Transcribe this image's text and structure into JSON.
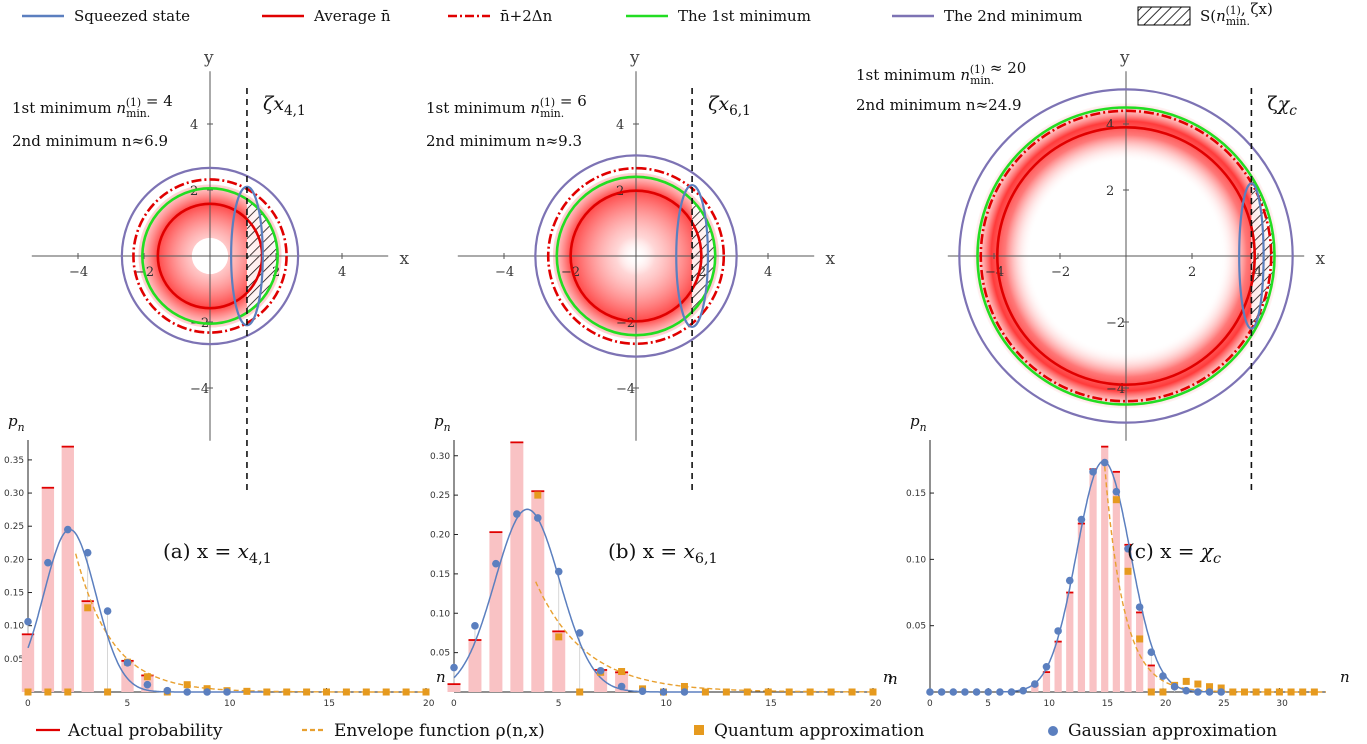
{
  "legend_top": [
    {
      "label": "Squeezed state",
      "color": "#5b7fbf",
      "style": "solid"
    },
    {
      "label": "Average n̄",
      "color": "#e00000",
      "style": "solid"
    },
    {
      "label": "n̄+2Δn",
      "color": "#e00000",
      "style": "dashdot"
    },
    {
      "label": "The 1st minimum",
      "color": "#22dd22",
      "style": "solid"
    },
    {
      "label": "The 2nd minimum",
      "color": "#7d73b4",
      "style": "solid"
    },
    {
      "label": "S(n_min.^(1), ζx)",
      "color": "#000000",
      "style": "hatch"
    }
  ],
  "legend_bottom": [
    {
      "label": "Actual probability",
      "color": "#e00000",
      "style": "solid"
    },
    {
      "label": "Envelope function ρ(n,x)",
      "color": "#e8a030",
      "style": "dashed"
    },
    {
      "label": "Quantum approximation",
      "color": "#e69a1e",
      "style": "square"
    },
    {
      "label": "Gaussian approximation",
      "color": "#5b7fbf",
      "style": "dot"
    }
  ],
  "phase_plots": [
    {
      "xlabel": "x",
      "ylabel": "y",
      "line1": "1st minimum n_min.^(1) = 4",
      "line2": "2nd minimum n≈6.9",
      "cut_label": "ζx_{4,1}",
      "ticks": [
        -4,
        -2,
        2,
        4
      ],
      "radii": {
        "mean": 1.58,
        "n2dn": 2.32,
        "min1": 2.05,
        "min2": 2.67,
        "inner_hole": 0.55
      },
      "cut_x": 1.12,
      "squeeze": {
        "cx": 1.12,
        "rx": 0.48,
        "ry": 2.1
      },
      "xlim": [
        -5.3,
        5.3
      ],
      "ylim": [
        -5.5,
        5.5
      ]
    },
    {
      "xlabel": "x",
      "ylabel": "y",
      "line1": "1st minimum n_min.^(1) = 6",
      "line2": "2nd minimum n≈9.3",
      "cut_label": "ζx_{6,1}",
      "ticks": [
        -4,
        -2,
        2,
        4
      ],
      "radii": {
        "mean": 1.98,
        "n2dn": 2.66,
        "min1": 2.4,
        "min2": 3.05,
        "inner_hole": 0.0
      },
      "cut_x": 1.7,
      "squeeze": {
        "cx": 1.7,
        "rx": 0.48,
        "ry": 2.15
      },
      "xlim": [
        -5.3,
        5.3
      ],
      "ylim": [
        -5.5,
        5.5
      ]
    },
    {
      "xlabel": "x",
      "ylabel": "y",
      "line1": "1st minimum n_min.^(1) ≈ 20",
      "line2": "2nd minimum n≈24.9",
      "cut_label": "ζχ_c",
      "ticks": [
        -4,
        -2,
        2,
        4
      ],
      "radii": {
        "mean": 3.9,
        "n2dn": 4.4,
        "min1": 4.5,
        "min2": 5.05,
        "inner_hole": 0.0
      },
      "cut_x": 3.8,
      "squeeze": {
        "cx": 3.8,
        "rx": 0.37,
        "ry": 2.2
      },
      "xlim": [
        -5.3,
        5.3
      ],
      "ylim": [
        -5.5,
        5.5
      ]
    }
  ],
  "chart_data": [
    {
      "type": "bar",
      "title": "(a) x = x_{4,1}",
      "xlabel": "n",
      "ylabel": "p_n",
      "xlim": [
        0,
        20
      ],
      "ylim": [
        0,
        0.38
      ],
      "xticks": [
        0,
        5,
        10,
        15,
        20
      ],
      "yticks": [
        0.05,
        0.1,
        0.15,
        0.2,
        0.25,
        0.3,
        0.35
      ],
      "actual": [
        [
          0,
          0.087
        ],
        [
          1,
          0.308
        ],
        [
          2,
          0.37
        ],
        [
          3,
          0.137
        ],
        [
          5,
          0.047
        ],
        [
          6,
          0.025
        ]
      ],
      "quantum": [
        [
          0,
          0.0
        ],
        [
          1,
          0.0
        ],
        [
          2,
          0.0
        ],
        [
          3,
          0.127
        ],
        [
          4,
          0.0
        ],
        [
          5,
          0.045
        ],
        [
          6,
          0.023
        ],
        [
          7,
          0.0
        ],
        [
          8,
          0.011
        ],
        [
          9,
          0.005
        ],
        [
          10,
          0.002
        ],
        [
          11,
          0.001
        ],
        [
          12,
          0.0
        ],
        [
          13,
          0.0
        ],
        [
          14,
          0.0
        ],
        [
          15,
          0.0
        ],
        [
          16,
          0.0
        ],
        [
          17,
          0.0
        ],
        [
          18,
          0.0
        ],
        [
          19,
          0.0
        ],
        [
          20,
          0.0
        ]
      ],
      "gaussian": [
        [
          0,
          0.106
        ],
        [
          1,
          0.195
        ],
        [
          2,
          0.245
        ],
        [
          3,
          0.21
        ],
        [
          4,
          0.122
        ],
        [
          5,
          0.044
        ],
        [
          6,
          0.011
        ],
        [
          7,
          0.002
        ],
        [
          8,
          0.0
        ],
        [
          9,
          0.0
        ],
        [
          10,
          0.0
        ]
      ],
      "gauss_mu": 2.1,
      "gauss_sigma": 1.3,
      "gauss_peak": 0.245,
      "envelope": {
        "a": 0.78,
        "k": 0.55,
        "n0": 2.4
      }
    },
    {
      "type": "bar",
      "title": "(b) x = x_{6,1}",
      "xlabel": "n",
      "ylabel": "p_n",
      "xlim": [
        0,
        20
      ],
      "ylim": [
        0,
        0.32
      ],
      "xticks": [
        0,
        5,
        10,
        15,
        20
      ],
      "yticks": [
        0.05,
        0.1,
        0.15,
        0.2,
        0.25,
        0.3
      ],
      "actual": [
        [
          0,
          0.01
        ],
        [
          1,
          0.066
        ],
        [
          2,
          0.203
        ],
        [
          3,
          0.317
        ],
        [
          4,
          0.255
        ],
        [
          5,
          0.077
        ],
        [
          7,
          0.028
        ],
        [
          8,
          0.025
        ]
      ],
      "quantum": [
        [
          4,
          0.25
        ],
        [
          5,
          0.07
        ],
        [
          6,
          0.0
        ],
        [
          7,
          0.025
        ],
        [
          8,
          0.026
        ],
        [
          9,
          0.004
        ],
        [
          10,
          0.0
        ],
        [
          11,
          0.007
        ],
        [
          12,
          0.0
        ],
        [
          13,
          0.0
        ],
        [
          14,
          0.0
        ],
        [
          15,
          0.0
        ],
        [
          16,
          0.0
        ],
        [
          17,
          0.0
        ],
        [
          18,
          0.0
        ],
        [
          19,
          0.0
        ],
        [
          20,
          0.0
        ]
      ],
      "gaussian": [
        [
          0,
          0.031
        ],
        [
          1,
          0.084
        ],
        [
          2,
          0.163
        ],
        [
          3,
          0.226
        ],
        [
          4,
          0.221
        ],
        [
          5,
          0.153
        ],
        [
          6,
          0.075
        ],
        [
          7,
          0.027
        ],
        [
          8,
          0.007
        ],
        [
          9,
          0.001
        ],
        [
          10,
          0.0
        ],
        [
          11,
          0.0
        ]
      ],
      "gauss_mu": 3.5,
      "gauss_sigma": 1.55,
      "gauss_peak": 0.232,
      "envelope": {
        "a": 0.72,
        "k": 0.42,
        "n0": 3.9
      }
    },
    {
      "type": "bar",
      "title": "(c) x = χ_c",
      "xlabel": "n",
      "ylabel": "p_n",
      "xlim": [
        0,
        34
      ],
      "ylim": [
        0,
        0.19
      ],
      "xticks": [
        0,
        5,
        10,
        15,
        20,
        25,
        30
      ],
      "yticks": [
        0.05,
        0.1,
        0.15
      ],
      "actual": [
        [
          9,
          0.005
        ],
        [
          10,
          0.015
        ],
        [
          11,
          0.038
        ],
        [
          12,
          0.075
        ],
        [
          13,
          0.127
        ],
        [
          14,
          0.168
        ],
        [
          15,
          0.185
        ],
        [
          16,
          0.166
        ],
        [
          17,
          0.111
        ],
        [
          18,
          0.06
        ],
        [
          19,
          0.02
        ]
      ],
      "quantum": [
        [
          16,
          0.145
        ],
        [
          17,
          0.091
        ],
        [
          18,
          0.04
        ],
        [
          19,
          0.0
        ],
        [
          20,
          0.0
        ],
        [
          21,
          0.005
        ],
        [
          22,
          0.008
        ],
        [
          23,
          0.006
        ],
        [
          24,
          0.004
        ],
        [
          25,
          0.003
        ],
        [
          26,
          0.0
        ],
        [
          27,
          0.0
        ],
        [
          28,
          0.0
        ],
        [
          29,
          0.0
        ],
        [
          30,
          0.0
        ],
        [
          31,
          0.0
        ],
        [
          32,
          0.0
        ],
        [
          33,
          0.0
        ]
      ],
      "gaussian": [
        [
          0,
          0.0
        ],
        [
          1,
          0.0
        ],
        [
          2,
          0.0
        ],
        [
          3,
          0.0
        ],
        [
          4,
          0.0
        ],
        [
          5,
          0.0
        ],
        [
          6,
          0.0
        ],
        [
          7,
          0.0
        ],
        [
          8,
          0.001
        ],
        [
          9,
          0.006
        ],
        [
          10,
          0.019
        ],
        [
          11,
          0.046
        ],
        [
          12,
          0.084
        ],
        [
          13,
          0.13
        ],
        [
          14,
          0.166
        ],
        [
          15,
          0.173
        ],
        [
          16,
          0.151
        ],
        [
          17,
          0.108
        ],
        [
          18,
          0.064
        ],
        [
          19,
          0.03
        ],
        [
          20,
          0.012
        ],
        [
          21,
          0.004
        ],
        [
          22,
          0.001
        ],
        [
          23,
          0.0
        ],
        [
          24,
          0.0
        ],
        [
          25,
          0.0
        ]
      ],
      "gauss_mu": 14.9,
      "gauss_sigma": 2.3,
      "gauss_peak": 0.174,
      "envelope": {
        "a": 0.17,
        "k": 0.6,
        "n0": 15.0
      }
    }
  ]
}
